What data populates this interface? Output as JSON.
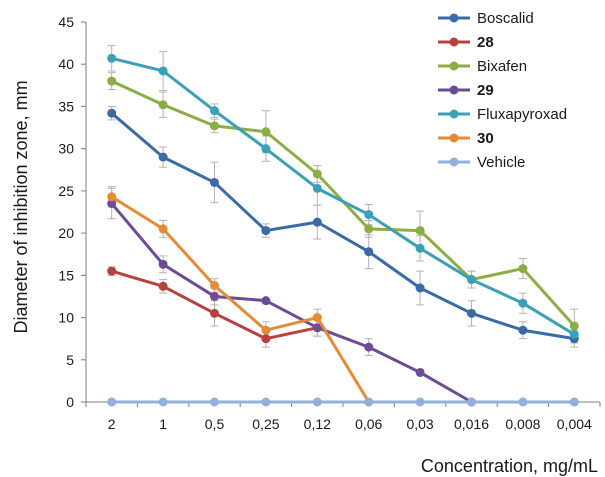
{
  "chart_data": {
    "type": "line",
    "xlabel": "Concentration, mg/mL",
    "ylabel": "Diameter of inhibition zone, mm",
    "categories": [
      "2",
      "1",
      "0,5",
      "0,25",
      "0,12",
      "0,06",
      "0,03",
      "0,016",
      "0,008",
      "0,004"
    ],
    "ylim": [
      0,
      45
    ],
    "yticks": [
      0,
      5,
      10,
      15,
      20,
      25,
      30,
      35,
      40,
      45
    ],
    "grid": false,
    "legend_position": "top-right",
    "series": [
      {
        "name": "Boscalid",
        "bold": false,
        "color": "#3a6aa8",
        "values": [
          34.2,
          29.0,
          26.0,
          20.3,
          21.3,
          17.8,
          13.5,
          10.5,
          8.5,
          7.5
        ],
        "errors": [
          0.8,
          1.2,
          2.4,
          0.8,
          2.0,
          2.0,
          2.0,
          1.5,
          1.0,
          1.0
        ]
      },
      {
        "name": "28",
        "bold": true,
        "color": "#b8413d",
        "values": [
          15.5,
          13.7,
          10.5,
          7.5,
          8.8,
          null,
          null,
          null,
          null,
          null
        ],
        "errors": [
          0.5,
          0.8,
          1.5,
          1.0,
          1.0,
          null,
          null,
          null,
          null,
          null
        ]
      },
      {
        "name": "Bixafen",
        "bold": false,
        "color": "#8aae44",
        "values": [
          38.0,
          35.2,
          32.7,
          32.0,
          27.0,
          20.5,
          20.3,
          14.5,
          15.8,
          9.0
        ],
        "errors": [
          1.0,
          1.5,
          0.8,
          2.5,
          1.0,
          1.0,
          2.3,
          1.0,
          1.2,
          2.0
        ]
      },
      {
        "name": "29",
        "bold": true,
        "color": "#6c4b97",
        "values": [
          23.5,
          16.3,
          12.5,
          12.0,
          8.8,
          6.5,
          3.5,
          0.0,
          null,
          null
        ],
        "errors": [
          1.8,
          1.0,
          1.0,
          null,
          1.0,
          1.0,
          null,
          null,
          null,
          null
        ]
      },
      {
        "name": "Fluxapyroxad",
        "bold": false,
        "color": "#3aa0b8",
        "values": [
          40.7,
          39.2,
          34.5,
          30.0,
          25.3,
          22.2,
          18.2,
          14.5,
          11.7,
          8.0
        ],
        "errors": [
          1.5,
          2.3,
          0.8,
          1.5,
          2.0,
          1.2,
          1.5,
          1.0,
          1.2,
          1.0
        ]
      },
      {
        "name": "30",
        "bold": true,
        "color": "#e68a38",
        "values": [
          24.3,
          20.5,
          13.8,
          8.5,
          10.0,
          0.0,
          null,
          null,
          null,
          null
        ],
        "errors": [
          1.2,
          1.0,
          0.8,
          1.0,
          1.0,
          null,
          null,
          null,
          null,
          null
        ]
      },
      {
        "name": "Vehicle",
        "bold": false,
        "color": "#92b0dc",
        "values": [
          0,
          0,
          0,
          0,
          0,
          0,
          0,
          0,
          0,
          0
        ],
        "errors": [
          null,
          null,
          null,
          null,
          null,
          null,
          null,
          null,
          null,
          null
        ]
      }
    ]
  }
}
